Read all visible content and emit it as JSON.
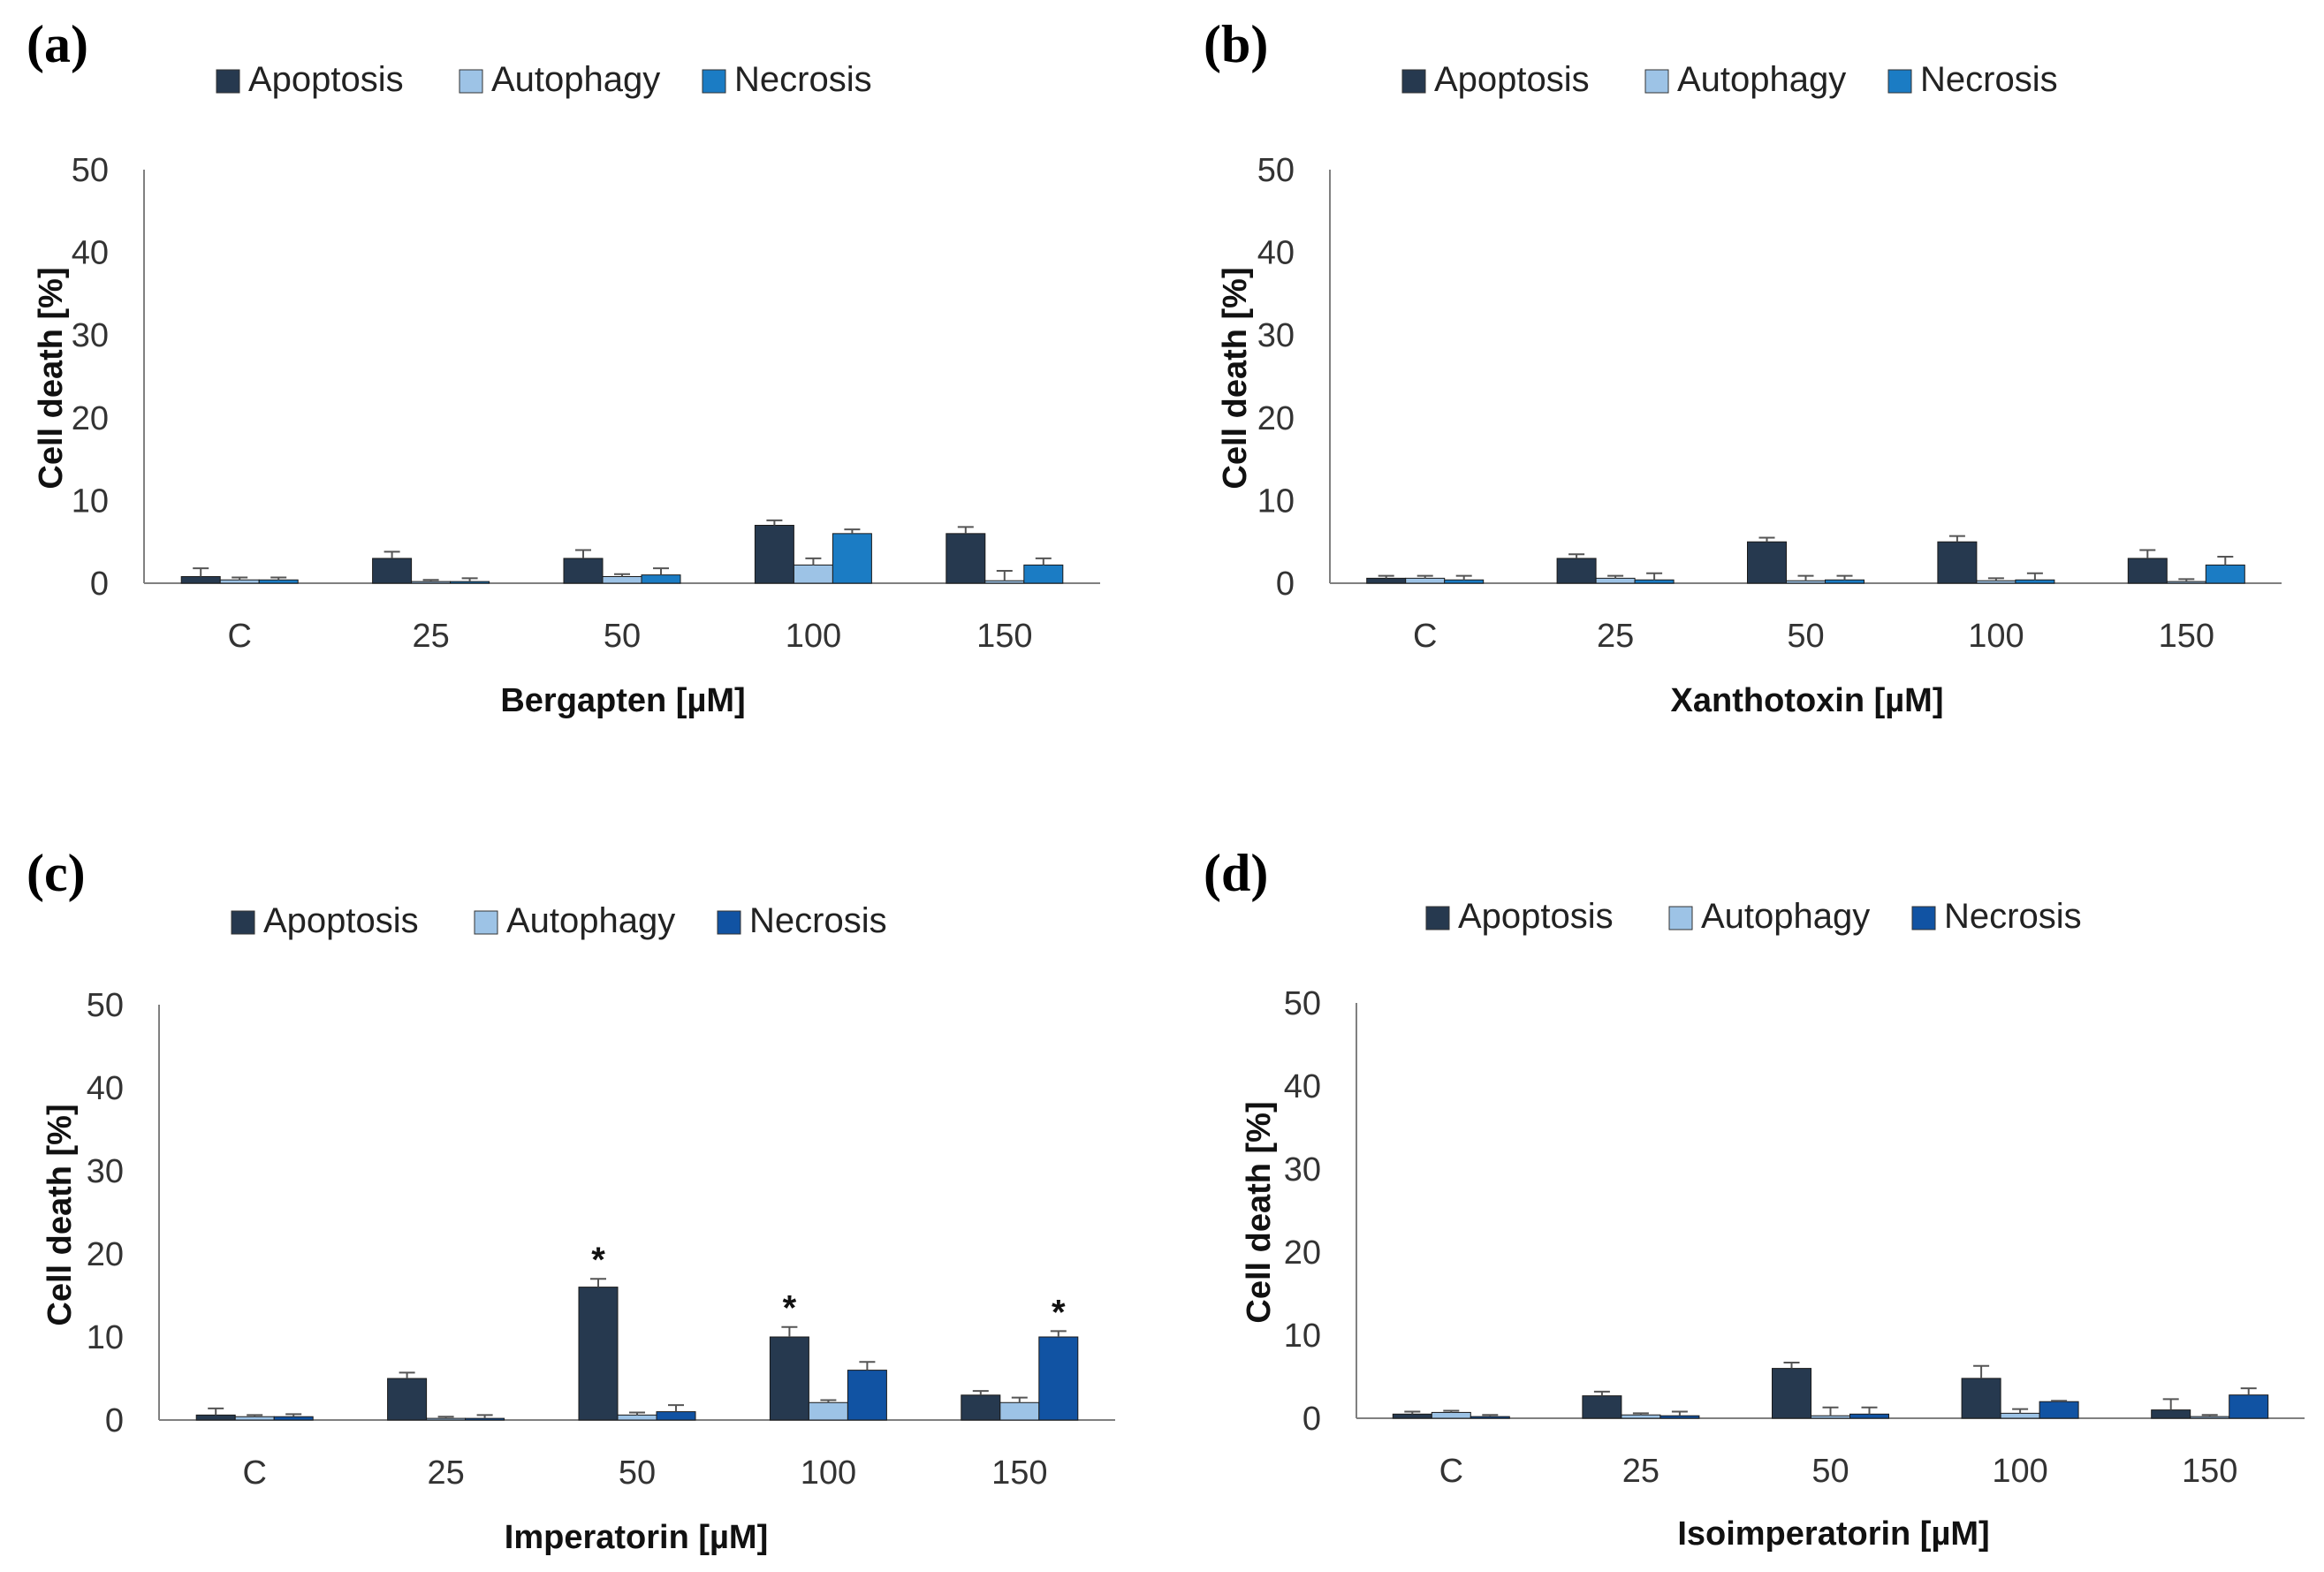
{
  "colors": {
    "apoptosis": "#26394F",
    "autophagy": "#9DC3E6",
    "necrosis_light": "#1B7CC4",
    "necrosis_dark": "#1153A3",
    "axis": "#808080",
    "error": "#555555"
  },
  "chart_data": [
    {
      "panel": "(a)",
      "type": "bar",
      "categories": [
        "C",
        "25",
        "50",
        "100",
        "150"
      ],
      "series": [
        {
          "name": "Apoptosis",
          "values": [
            0.8,
            3,
            3,
            7,
            6
          ],
          "errors": [
            1.0,
            0.8,
            1.0,
            0.6,
            0.8
          ]
        },
        {
          "name": "Autophagy",
          "values": [
            0.4,
            0.2,
            0.8,
            2.2,
            0.3
          ],
          "errors": [
            0.3,
            0.2,
            0.3,
            0.8,
            1.2
          ]
        },
        {
          "name": "Necrosis",
          "values": [
            0.4,
            0.2,
            1,
            6,
            2.2
          ],
          "errors": [
            0.3,
            0.4,
            0.8,
            0.5,
            0.8
          ]
        }
      ],
      "annotations": [
        "",
        "",
        "",
        "",
        ""
      ],
      "xlabel": "Bergapten [µM]",
      "ylabel": "Cell death [%]",
      "ylim": [
        0,
        50
      ],
      "yticks": [
        "0",
        "10",
        "20",
        "30",
        "40",
        "50"
      ],
      "legend_position": "top"
    },
    {
      "panel": "(b)",
      "type": "bar",
      "categories": [
        "C",
        "25",
        "50",
        "100",
        "150"
      ],
      "series": [
        {
          "name": "Apoptosis",
          "values": [
            0.6,
            3,
            5,
            5,
            3
          ],
          "errors": [
            0.3,
            0.5,
            0.5,
            0.7,
            1.0
          ]
        },
        {
          "name": "Autophagy",
          "values": [
            0.6,
            0.6,
            0.3,
            0.3,
            0.2
          ],
          "errors": [
            0.3,
            0.3,
            0.6,
            0.3,
            0.3
          ]
        },
        {
          "name": "Necrosis",
          "values": [
            0.4,
            0.4,
            0.4,
            0.4,
            2.2
          ],
          "errors": [
            0.5,
            0.8,
            0.5,
            0.8,
            1.0
          ]
        }
      ],
      "annotations": [
        "",
        "",
        "",
        "",
        ""
      ],
      "xlabel": "Xanthotoxin [µM]",
      "ylabel": "Cell death [%]",
      "ylim": [
        0,
        50
      ],
      "yticks": [
        "0",
        "10",
        "20",
        "30",
        "40",
        "50"
      ],
      "legend_position": "top"
    },
    {
      "panel": "(c)",
      "type": "bar",
      "categories": [
        "C",
        "25",
        "50",
        "100",
        "150"
      ],
      "series": [
        {
          "name": "Apoptosis",
          "values": [
            0.6,
            5,
            16,
            10,
            3
          ],
          "errors": [
            0.8,
            0.7,
            1.0,
            1.2,
            0.5
          ]
        },
        {
          "name": "Autophagy",
          "values": [
            0.4,
            0.2,
            0.6,
            2.1,
            2.1
          ],
          "errors": [
            0.2,
            0.2,
            0.3,
            0.3,
            0.6
          ]
        },
        {
          "name": "Necrosis",
          "values": [
            0.4,
            0.2,
            1,
            6,
            10
          ],
          "errors": [
            0.3,
            0.4,
            0.8,
            1.0,
            0.7
          ]
        }
      ],
      "annotations": [
        "",
        "",
        "*",
        "*",
        "*"
      ],
      "annotation_series": [
        null,
        null,
        "Apoptosis",
        "Apoptosis",
        "Necrosis"
      ],
      "xlabel": "Imperatorin [µM]",
      "ylabel": "Cell death [%]",
      "ylim": [
        0,
        50
      ],
      "yticks": [
        "0",
        "10",
        "20",
        "30",
        "40",
        "50"
      ],
      "legend_position": "top"
    },
    {
      "panel": "(d)",
      "type": "bar",
      "categories": [
        "C",
        "25",
        "50",
        "100",
        "150"
      ],
      "series": [
        {
          "name": "Apoptosis",
          "values": [
            0.5,
            2.7,
            6,
            4.8,
            1
          ],
          "errors": [
            0.3,
            0.5,
            0.7,
            1.5,
            1.3
          ]
        },
        {
          "name": "Autophagy",
          "values": [
            0.7,
            0.4,
            0.3,
            0.6,
            0.2
          ],
          "errors": [
            0.2,
            0.2,
            1.0,
            0.5,
            0.2
          ]
        },
        {
          "name": "Necrosis",
          "values": [
            0.2,
            0.3,
            0.5,
            2,
            2.8
          ],
          "errors": [
            0.2,
            0.5,
            0.8,
            0.1,
            0.8
          ]
        }
      ],
      "annotations": [
        "",
        "",
        "",
        "",
        ""
      ],
      "xlabel": "Isoimperatorin [µM]",
      "ylabel": "Cell death [%]",
      "ylim": [
        0,
        50
      ],
      "yticks": [
        "0",
        "10",
        "20",
        "30",
        "40",
        "50"
      ],
      "legend_position": "top"
    }
  ]
}
